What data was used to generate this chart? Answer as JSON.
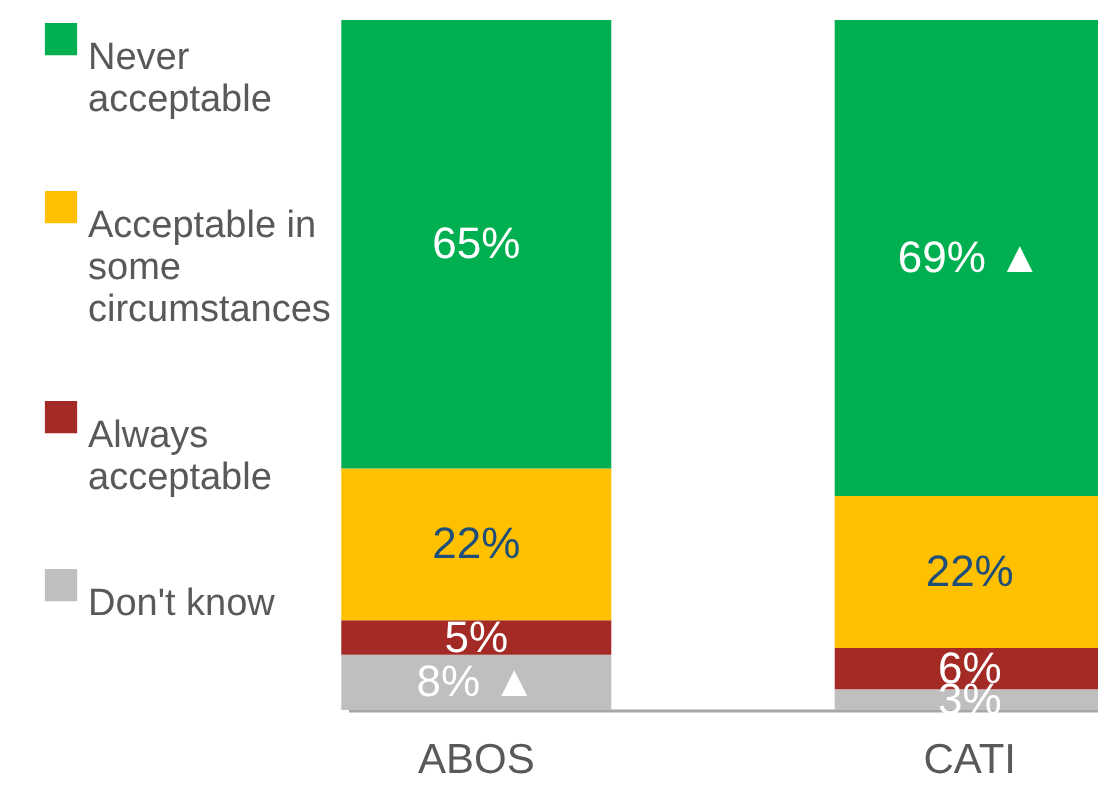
{
  "chart_data": {
    "type": "bar",
    "stacked": true,
    "categories": [
      "ABOS",
      "CATI"
    ],
    "series": [
      {
        "name": "Don't know",
        "color": "#bfbfbf",
        "values": [
          8,
          3
        ],
        "value_labels": [
          "8% ▲",
          "3%"
        ]
      },
      {
        "name": "Always acceptable",
        "color": "#a32a25",
        "values": [
          5,
          6
        ],
        "value_labels": [
          "5%",
          "6%"
        ]
      },
      {
        "name": "Acceptable in some circumstances",
        "color": "#ffc000",
        "values": [
          22,
          22
        ],
        "value_labels": [
          "22%",
          "22%"
        ]
      },
      {
        "name": "Never acceptable",
        "color": "#00b050",
        "values": [
          65,
          69
        ],
        "value_labels": [
          "65%",
          "69% ▲"
        ]
      }
    ],
    "legend": "left"
  }
}
